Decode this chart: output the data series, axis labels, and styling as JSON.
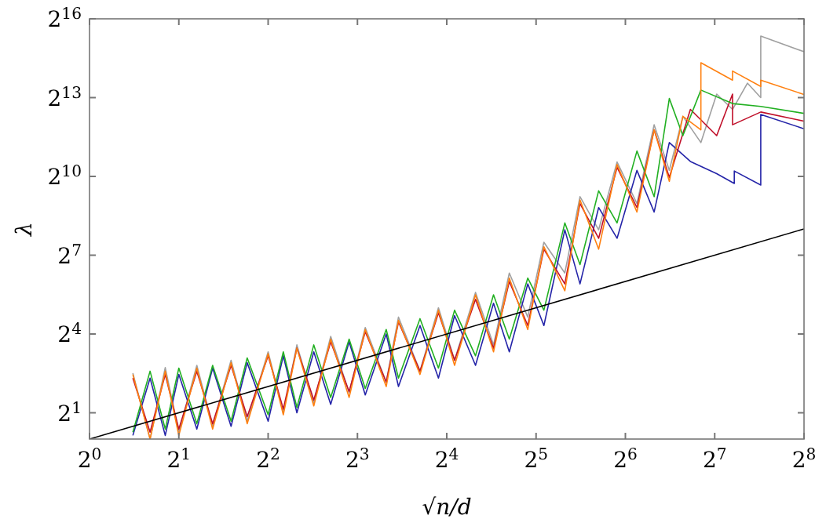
{
  "chart_data": {
    "type": "line",
    "xlabel": "√n/d",
    "ylabel": "λ",
    "log": "xy",
    "xlim": [
      1,
      256
    ],
    "ylim": [
      1,
      65536
    ],
    "xticks": [
      {
        "value": 1,
        "label": "2$^{0}$"
      },
      {
        "value": 2,
        "label": "2$^{1}$"
      },
      {
        "value": 4,
        "label": "2$^{2}$"
      },
      {
        "value": 8,
        "label": "2$^{3}$"
      },
      {
        "value": 16,
        "label": "2$^{4}$"
      },
      {
        "value": 32,
        "label": "2$^{5}$"
      },
      {
        "value": 64,
        "label": "2$^{6}$"
      },
      {
        "value": 128,
        "label": "2$^{7}$"
      },
      {
        "value": 256,
        "label": "2$^{8}$"
      }
    ],
    "yticks": [
      {
        "value": 2,
        "label": "2$^{1}$"
      },
      {
        "value": 16,
        "label": "2$^{4}$"
      },
      {
        "value": 128,
        "label": "2$^{7}$"
      },
      {
        "value": 1024,
        "label": "2$^{10}$"
      },
      {
        "value": 8192,
        "label": "2$^{13}$"
      },
      {
        "value": 65536,
        "label": "2$^{16}$"
      }
    ],
    "series": [
      {
        "color": "#a0a0a0",
        "x": [
          1.4,
          1.6,
          1.8,
          2,
          2.3,
          2.6,
          3,
          3.4,
          4,
          4.5,
          5,
          5.7,
          6.5,
          7.5,
          8.5,
          10,
          11,
          13,
          15,
          17,
          20,
          23,
          26,
          30,
          34,
          40,
          45,
          52,
          60,
          70,
          80,
          90,
          100,
          115,
          130,
          147,
          165,
          183,
          183,
          256
        ],
        "values": [
          5.7,
          1,
          6.6,
          1.2,
          7,
          1.4,
          8,
          1.6,
          10,
          2,
          12,
          2.6,
          15,
          3.4,
          19,
          4.5,
          25,
          6,
          32,
          8,
          48,
          12,
          80,
          25,
          180,
          80,
          600,
          250,
          1500,
          500,
          4000,
          1200,
          5000,
          2500,
          9000,
          6000,
          12000,
          8192,
          41500,
          27500
        ]
      },
      {
        "color": "#2424a8",
        "x": [
          1.4,
          1.6,
          1.8,
          2,
          2.3,
          2.6,
          3,
          3.4,
          4,
          4.5,
          5,
          5.7,
          6.5,
          7.5,
          8.5,
          10,
          11,
          13,
          15,
          17,
          20,
          23,
          26,
          30,
          34,
          40,
          45,
          52,
          60,
          70,
          80,
          90,
          106,
          130,
          149,
          149,
          183,
          183,
          256
        ],
        "values": [
          1.1,
          5,
          1.1,
          5.5,
          1.3,
          6.5,
          1.4,
          7.5,
          1.6,
          9,
          2,
          10,
          2.5,
          13,
          3.2,
          16,
          4,
          20,
          5,
          26,
          7,
          36,
          10,
          60,
          20,
          250,
          60,
          450,
          200,
          1200,
          400,
          2500,
          1520,
          1100,
          850,
          1180,
          815,
          5250,
          3600
        ]
      },
      {
        "color": "#c0102a",
        "x": [
          1.4,
          1.6,
          1.8,
          2,
          2.3,
          2.6,
          3,
          3.4,
          4,
          4.5,
          5,
          5.7,
          6.5,
          7.5,
          8.5,
          10,
          11,
          13,
          15,
          17,
          20,
          23,
          26,
          30,
          34,
          40,
          45,
          52,
          60,
          70,
          80,
          90,
          106,
          130,
          147,
          147,
          183,
          256
        ],
        "values": [
          5,
          1.2,
          5.5,
          1.3,
          6,
          1.5,
          7,
          1.8,
          9,
          2.2,
          11,
          2.8,
          13,
          3.5,
          17,
          4.5,
          22,
          6,
          28,
          8,
          40,
          11,
          64,
          20,
          150,
          60,
          500,
          200,
          1300,
          450,
          3500,
          1000,
          6000,
          3000,
          9000,
          4000,
          5600,
          4400
        ]
      },
      {
        "color": "#22b022",
        "x": [
          1.4,
          1.6,
          1.8,
          2,
          2.3,
          2.6,
          3,
          3.4,
          4,
          4.5,
          5,
          5.7,
          6.5,
          7.5,
          8.5,
          10,
          11,
          13,
          15,
          17,
          20,
          23,
          26,
          30,
          34,
          40,
          45,
          52,
          60,
          70,
          80,
          90,
          100,
          115,
          147,
          183,
          256
        ],
        "values": [
          1.2,
          6,
          1.3,
          6.5,
          1.5,
          7,
          1.6,
          8.5,
          1.9,
          10,
          2.3,
          12,
          3,
          14,
          3.8,
          18,
          5,
          24,
          6.5,
          30,
          9,
          45,
          14,
          70,
          30,
          300,
          100,
          700,
          300,
          2000,
          600,
          8000,
          3000,
          10000,
          7000,
          6500,
          5400
        ]
      },
      {
        "color": "#ff8010",
        "x": [
          1.4,
          1.6,
          1.8,
          2,
          2.3,
          2.6,
          3,
          3.4,
          4,
          4.5,
          5,
          5.7,
          6.5,
          7.5,
          8.5,
          10,
          11,
          13,
          15,
          17,
          20,
          23,
          26,
          30,
          34,
          40,
          45,
          52,
          60,
          70,
          80,
          90,
          100,
          115,
          115,
          147,
          147,
          183,
          183,
          256
        ],
        "values": [
          5.5,
          1,
          6,
          1.1,
          6.5,
          1.3,
          7.5,
          1.5,
          9.5,
          1.9,
          11,
          2.4,
          14,
          3,
          18,
          4,
          23,
          5.5,
          30,
          7,
          45,
          10,
          70,
          18,
          160,
          50,
          550,
          150,
          1400,
          400,
          3500,
          900,
          5000,
          3500,
          20600,
          13000,
          16500,
          11000,
          13000,
          8900
        ]
      },
      {
        "color": "#000000",
        "x": [
          1,
          256
        ],
        "values": [
          1,
          256
        ]
      }
    ]
  }
}
